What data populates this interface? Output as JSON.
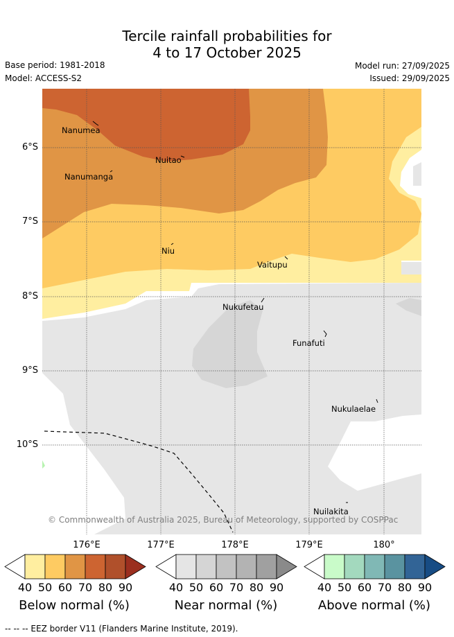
{
  "title": {
    "line1": "Tercile rainfall probabilities for",
    "line2": "4 to 17 October 2025"
  },
  "meta": {
    "base_period": "Base period: 1981-2018",
    "model": "Model: ACCESS-S2",
    "model_run": "Model run: 27/09/2025",
    "issued": "Issued: 29/09/2025"
  },
  "axes": {
    "latitudes": [
      "6°S",
      "7°S",
      "8°S",
      "9°S",
      "10°S"
    ],
    "longitudes": [
      "176°E",
      "177°E",
      "178°E",
      "179°E",
      "180°"
    ]
  },
  "places": [
    {
      "name": "Nanumea"
    },
    {
      "name": "Nuitao"
    },
    {
      "name": "Nanumanga"
    },
    {
      "name": "Niu"
    },
    {
      "name": "Vaitupu"
    },
    {
      "name": "Nukufetau"
    },
    {
      "name": "Funafuti"
    },
    {
      "name": "Nukulaelae"
    },
    {
      "name": "Nuilakita"
    }
  ],
  "copyright": "© Commonwealth of Australia 2025, Bureau of Meteorology, supported by COSPPac",
  "colorbars": [
    {
      "title": "Below normal (%)",
      "ticks": [
        "40",
        "50",
        "60",
        "70",
        "80",
        "90"
      ],
      "colors": [
        "#ffeea0",
        "#fecb62",
        "#e09545",
        "#cd6431",
        "#b0502b",
        "#9b2f1f"
      ]
    },
    {
      "title": "Near normal (%)",
      "ticks": [
        "40",
        "50",
        "60",
        "70",
        "80",
        "90"
      ],
      "colors": [
        "#e5e5e5",
        "#d5d5d5",
        "#c2c2c2",
        "#b3b3b3",
        "#a0a0a0",
        "#8a8a8a"
      ]
    },
    {
      "title": "Above normal (%)",
      "ticks": [
        "40",
        "50",
        "60",
        "70",
        "80",
        "90"
      ],
      "colors": [
        "#c9fbc9",
        "#a3d9be",
        "#80b8b5",
        "#5a93a0",
        "#326496",
        "#174c84"
      ]
    }
  ],
  "footnote": "--  --  -- EEZ border V11 (Flanders Marine Institute, 2019)."
}
